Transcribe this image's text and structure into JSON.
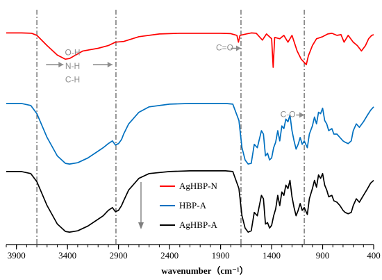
{
  "chart_data": {
    "type": "line",
    "title": "",
    "xlabel": "wavenumber（cm⁻¹）",
    "ylabel": "",
    "xlim": [
      4000,
      400
    ],
    "x_reversed": true,
    "y_axis_shown": false,
    "xticks": [
      3900,
      3400,
      2900,
      2400,
      1900,
      1400,
      900,
      400
    ],
    "xtick_labels": [
      "3900",
      "3400",
      "2900",
      "2400",
      "1900",
      "1400",
      "900",
      "400"
    ],
    "series": [
      {
        "name": "AgHBP-N",
        "color": "#ff0000",
        "offset": 2,
        "points": [
          [
            4000,
            0.985
          ],
          [
            3850,
            0.985
          ],
          [
            3750,
            0.98
          ],
          [
            3700,
            0.95
          ],
          [
            3600,
            0.8
          ],
          [
            3500,
            0.66
          ],
          [
            3420,
            0.6
          ],
          [
            3380,
            0.61
          ],
          [
            3250,
            0.72
          ],
          [
            3100,
            0.76
          ],
          [
            3000,
            0.8
          ],
          [
            2930,
            0.85
          ],
          [
            2850,
            0.86
          ],
          [
            2700,
            0.93
          ],
          [
            2500,
            0.97
          ],
          [
            2300,
            0.98
          ],
          [
            2100,
            0.98
          ],
          [
            1900,
            0.98
          ],
          [
            1800,
            0.975
          ],
          [
            1740,
            0.95
          ],
          [
            1725,
            0.85
          ],
          [
            1710,
            0.95
          ],
          [
            1650,
            0.97
          ],
          [
            1600,
            0.985
          ],
          [
            1550,
            0.98
          ],
          [
            1490,
            0.88
          ],
          [
            1450,
            0.97
          ],
          [
            1400,
            0.9
          ],
          [
            1385,
            0.48
          ],
          [
            1370,
            0.92
          ],
          [
            1320,
            0.9
          ],
          [
            1280,
            0.95
          ],
          [
            1240,
            0.85
          ],
          [
            1200,
            0.95
          ],
          [
            1150,
            0.72
          ],
          [
            1110,
            0.6
          ],
          [
            1060,
            0.52
          ],
          [
            1040,
            0.65
          ],
          [
            1000,
            0.8
          ],
          [
            960,
            0.9
          ],
          [
            900,
            0.93
          ],
          [
            850,
            0.97
          ],
          [
            810,
            0.98
          ],
          [
            760,
            0.95
          ],
          [
            720,
            0.96
          ],
          [
            690,
            0.85
          ],
          [
            650,
            0.95
          ],
          [
            600,
            0.85
          ],
          [
            560,
            0.8
          ],
          [
            520,
            0.72
          ],
          [
            480,
            0.8
          ],
          [
            450,
            0.9
          ],
          [
            420,
            0.95
          ],
          [
            400,
            0.96
          ]
        ]
      },
      {
        "name": "HBP-A",
        "color": "#0070c0",
        "offset": 1,
        "points": [
          [
            4000,
            0.95
          ],
          [
            3850,
            0.95
          ],
          [
            3760,
            0.92
          ],
          [
            3700,
            0.8
          ],
          [
            3600,
            0.45
          ],
          [
            3500,
            0.18
          ],
          [
            3420,
            0.07
          ],
          [
            3380,
            0.06
          ],
          [
            3300,
            0.08
          ],
          [
            3200,
            0.15
          ],
          [
            3100,
            0.25
          ],
          [
            3050,
            0.3
          ],
          [
            3000,
            0.36
          ],
          [
            2960,
            0.4
          ],
          [
            2930,
            0.34
          ],
          [
            2900,
            0.36
          ],
          [
            2870,
            0.42
          ],
          [
            2850,
            0.5
          ],
          [
            2800,
            0.65
          ],
          [
            2700,
            0.82
          ],
          [
            2600,
            0.9
          ],
          [
            2400,
            0.94
          ],
          [
            2200,
            0.95
          ],
          [
            2000,
            0.95
          ],
          [
            1850,
            0.95
          ],
          [
            1780,
            0.94
          ],
          [
            1720,
            0.7
          ],
          [
            1690,
            0.3
          ],
          [
            1660,
            0.12
          ],
          [
            1630,
            0.06
          ],
          [
            1600,
            0.07
          ],
          [
            1570,
            0.35
          ],
          [
            1540,
            0.3
          ],
          [
            1500,
            0.55
          ],
          [
            1480,
            0.5
          ],
          [
            1460,
            0.18
          ],
          [
            1440,
            0.22
          ],
          [
            1420,
            0.12
          ],
          [
            1400,
            0.15
          ],
          [
            1380,
            0.3
          ],
          [
            1360,
            0.38
          ],
          [
            1340,
            0.55
          ],
          [
            1320,
            0.4
          ],
          [
            1300,
            0.62
          ],
          [
            1280,
            0.58
          ],
          [
            1260,
            0.72
          ],
          [
            1240,
            0.68
          ],
          [
            1220,
            0.78
          ],
          [
            1200,
            0.55
          ],
          [
            1180,
            0.4
          ],
          [
            1160,
            0.28
          ],
          [
            1140,
            0.35
          ],
          [
            1120,
            0.45
          ],
          [
            1100,
            0.35
          ],
          [
            1080,
            0.4
          ],
          [
            1050,
            0.3
          ],
          [
            1030,
            0.5
          ],
          [
            1000,
            0.62
          ],
          [
            980,
            0.75
          ],
          [
            960,
            0.65
          ],
          [
            940,
            0.82
          ],
          [
            920,
            0.8
          ],
          [
            900,
            0.88
          ],
          [
            880,
            0.7
          ],
          [
            860,
            0.65
          ],
          [
            840,
            0.55
          ],
          [
            810,
            0.58
          ],
          [
            790,
            0.5
          ],
          [
            760,
            0.5
          ],
          [
            730,
            0.45
          ],
          [
            700,
            0.4
          ],
          [
            680,
            0.38
          ],
          [
            650,
            0.36
          ],
          [
            620,
            0.4
          ],
          [
            600,
            0.55
          ],
          [
            570,
            0.65
          ],
          [
            540,
            0.6
          ],
          [
            500,
            0.68
          ],
          [
            460,
            0.78
          ],
          [
            430,
            0.85
          ],
          [
            400,
            0.9
          ]
        ]
      },
      {
        "name": "AgHBP-A",
        "color": "#000000",
        "offset": 0,
        "points": [
          [
            4000,
            0.95
          ],
          [
            3850,
            0.95
          ],
          [
            3760,
            0.92
          ],
          [
            3700,
            0.8
          ],
          [
            3600,
            0.45
          ],
          [
            3500,
            0.18
          ],
          [
            3420,
            0.07
          ],
          [
            3380,
            0.06
          ],
          [
            3300,
            0.08
          ],
          [
            3200,
            0.15
          ],
          [
            3100,
            0.25
          ],
          [
            3050,
            0.3
          ],
          [
            3000,
            0.38
          ],
          [
            2960,
            0.42
          ],
          [
            2930,
            0.36
          ],
          [
            2900,
            0.38
          ],
          [
            2870,
            0.45
          ],
          [
            2850,
            0.52
          ],
          [
            2800,
            0.68
          ],
          [
            2700,
            0.85
          ],
          [
            2600,
            0.92
          ],
          [
            2400,
            0.95
          ],
          [
            2200,
            0.96
          ],
          [
            2000,
            0.96
          ],
          [
            1850,
            0.96
          ],
          [
            1780,
            0.95
          ],
          [
            1720,
            0.7
          ],
          [
            1690,
            0.3
          ],
          [
            1660,
            0.12
          ],
          [
            1630,
            0.06
          ],
          [
            1600,
            0.08
          ],
          [
            1570,
            0.35
          ],
          [
            1540,
            0.3
          ],
          [
            1500,
            0.6
          ],
          [
            1480,
            0.55
          ],
          [
            1460,
            0.18
          ],
          [
            1440,
            0.2
          ],
          [
            1420,
            0.12
          ],
          [
            1400,
            0.16
          ],
          [
            1380,
            0.3
          ],
          [
            1360,
            0.4
          ],
          [
            1340,
            0.6
          ],
          [
            1320,
            0.45
          ],
          [
            1300,
            0.65
          ],
          [
            1280,
            0.6
          ],
          [
            1260,
            0.75
          ],
          [
            1240,
            0.7
          ],
          [
            1220,
            0.82
          ],
          [
            1200,
            0.58
          ],
          [
            1180,
            0.42
          ],
          [
            1160,
            0.3
          ],
          [
            1140,
            0.38
          ],
          [
            1120,
            0.48
          ],
          [
            1100,
            0.38
          ],
          [
            1080,
            0.42
          ],
          [
            1050,
            0.32
          ],
          [
            1030,
            0.55
          ],
          [
            1000,
            0.7
          ],
          [
            980,
            0.82
          ],
          [
            960,
            0.72
          ],
          [
            940,
            0.9
          ],
          [
            920,
            0.85
          ],
          [
            900,
            0.92
          ],
          [
            880,
            0.75
          ],
          [
            860,
            0.68
          ],
          [
            840,
            0.58
          ],
          [
            810,
            0.6
          ],
          [
            790,
            0.52
          ],
          [
            760,
            0.5
          ],
          [
            730,
            0.45
          ],
          [
            700,
            0.38
          ],
          [
            680,
            0.35
          ],
          [
            650,
            0.33
          ],
          [
            620,
            0.35
          ],
          [
            600,
            0.45
          ],
          [
            570,
            0.55
          ],
          [
            540,
            0.5
          ],
          [
            500,
            0.6
          ],
          [
            460,
            0.7
          ],
          [
            430,
            0.78
          ],
          [
            400,
            0.82
          ]
        ]
      }
    ],
    "reference_lines": [
      3700,
      2925,
      1700,
      1080
    ],
    "annotations": [
      {
        "text": "O-H",
        "x": 3350,
        "level": 2.7
      },
      {
        "text": "N-H",
        "x": 3350,
        "level": 2.5
      },
      {
        "text": "C-H",
        "x": 3350,
        "level": 2.3
      },
      {
        "text": "C=O",
        "x": 1860,
        "level": 2.77
      },
      {
        "text": "C-O",
        "x": 1240,
        "level": 1.79
      }
    ],
    "annotation_arrows": [
      {
        "from": 3610,
        "to": 3440,
        "level": 2.52
      },
      {
        "from": 3150,
        "to": 2960,
        "level": 2.52
      },
      {
        "from": 1800,
        "to": 1700,
        "level": 2.76
      },
      {
        "from": 1160,
        "to": 1080,
        "level": 1.78
      }
    ],
    "legend_arrow": {
      "label": "downward arrow",
      "direction": "down"
    },
    "legend_position": "lower-middle",
    "grid": false,
    "legend": [
      {
        "name": "AgHBP-N",
        "color": "#ff0000"
      },
      {
        "name": "HBP-A",
        "color": "#0070c0"
      },
      {
        "name": "AgHBP-A",
        "color": "#000000"
      }
    ]
  }
}
